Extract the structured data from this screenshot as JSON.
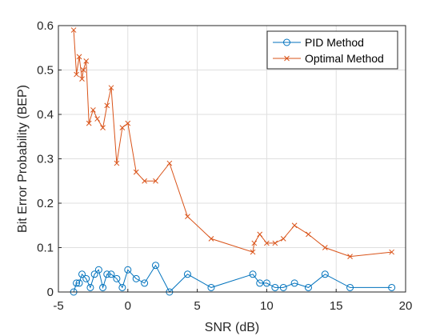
{
  "chart_data": {
    "type": "line",
    "xlabel": "SNR (dB)",
    "ylabel": "Bit Error Probability (BEP)",
    "xlim": [
      -5,
      20
    ],
    "ylim": [
      0,
      0.6
    ],
    "xticks": [
      "-5",
      "0",
      "5",
      "10",
      "15",
      "20"
    ],
    "yticks": [
      "0",
      "0.1",
      "0.2",
      "0.3",
      "0.4",
      "0.5",
      "0.6"
    ],
    "grid": true,
    "legend_position": "top-right",
    "series": [
      {
        "name": "PID Method",
        "color": "#0072BD",
        "marker": "circle",
        "x": [
          -3.9,
          -3.7,
          -3.5,
          -3.3,
          -3.0,
          -2.7,
          -2.4,
          -2.1,
          -1.8,
          -1.5,
          -1.2,
          -0.8,
          -0.4,
          0.0,
          0.6,
          1.2,
          2.0,
          3.0,
          4.3,
          6.0,
          9.0,
          9.5,
          10.0,
          10.6,
          11.2,
          12.0,
          13.0,
          14.2,
          16.0,
          19.0
        ],
        "y": [
          0.0,
          0.02,
          0.02,
          0.04,
          0.03,
          0.01,
          0.04,
          0.05,
          0.01,
          0.04,
          0.04,
          0.03,
          0.01,
          0.05,
          0.03,
          0.02,
          0.06,
          0.0,
          0.04,
          0.01,
          0.04,
          0.02,
          0.02,
          0.01,
          0.01,
          0.02,
          0.01,
          0.04,
          0.01,
          0.01
        ]
      },
      {
        "name": "Optimal Method",
        "color": "#D95319",
        "marker": "x",
        "x": [
          -3.9,
          -3.7,
          -3.5,
          -3.3,
          -3.2,
          -3.0,
          -2.8,
          -2.5,
          -2.2,
          -1.8,
          -1.5,
          -1.2,
          -0.8,
          -0.4,
          0.0,
          0.6,
          1.2,
          2.0,
          3.0,
          4.3,
          6.0,
          9.0,
          9.1,
          9.5,
          10.0,
          10.6,
          11.2,
          12.0,
          13.0,
          14.2,
          16.0,
          19.0
        ],
        "y": [
          0.59,
          0.49,
          0.53,
          0.48,
          0.5,
          0.52,
          0.38,
          0.41,
          0.39,
          0.37,
          0.42,
          0.46,
          0.29,
          0.37,
          0.38,
          0.27,
          0.25,
          0.25,
          0.29,
          0.17,
          0.12,
          0.09,
          0.11,
          0.13,
          0.11,
          0.11,
          0.12,
          0.15,
          0.13,
          0.1,
          0.08,
          0.09
        ]
      }
    ]
  }
}
